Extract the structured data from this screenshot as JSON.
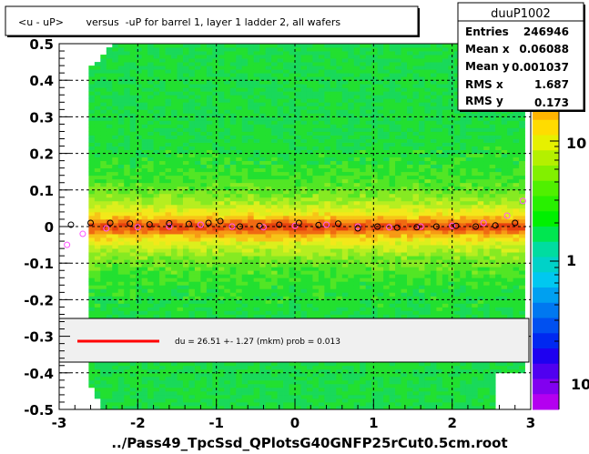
{
  "chart_data": {
    "type": "heatmap",
    "title": "<u - uP>       versus  -uP for barrel 1, layer 1 ladder 2, all wafers",
    "xlabel": "../Pass49_TpcSsd_QPlotsG40GNFP25rCut0.5cm.root",
    "ylabel": "",
    "xlim": [
      -3,
      3
    ],
    "ylim": [
      -0.5,
      0.5
    ],
    "x_ticks": [
      "-3",
      "-2",
      "-1",
      "0",
      "1",
      "2",
      "3"
    ],
    "y_ticks": [
      "-0.5",
      "-0.4",
      "-0.3",
      "-0.2",
      "-0.1",
      "0",
      "0.1",
      "0.2",
      "0.3",
      "0.4",
      "0.5"
    ],
    "grid": true,
    "stats": {
      "name": "duuP1002",
      "rows": [
        {
          "label": "Entries",
          "value": "246946"
        },
        {
          "label": "Mean x",
          "value": "0.06088"
        },
        {
          "label": "Mean y",
          "value": "0.001037"
        },
        {
          "label": "RMS x",
          "value": "1.687"
        },
        {
          "label": "RMS y",
          "value": "0.173"
        }
      ]
    },
    "colorbar": {
      "labels": [
        "10",
        "1",
        "10"
      ],
      "scale": "log"
    },
    "fit_legend": {
      "text": "du =   26.51 +-  1.27 (mkm) prob = 0.013",
      "line_color": "#ff0000"
    },
    "profile_mean": {
      "name": "mean",
      "x": [
        -2.85,
        -2.6,
        -2.35,
        -2.1,
        -1.85,
        -1.6,
        -1.35,
        -1.1,
        -0.95,
        -0.7,
        -0.45,
        -0.2,
        0.05,
        0.3,
        0.55,
        0.8,
        1.05,
        1.3,
        1.55,
        1.8,
        2.05,
        2.3,
        2.55,
        2.8
      ],
      "y": [
        0.005,
        0.01,
        0.01,
        0.008,
        0.006,
        0.009,
        0.007,
        0.01,
        0.015,
        0.0,
        0.002,
        0.005,
        0.01,
        0.004,
        0.008,
        -0.005,
        0.0,
        -0.003,
        -0.002,
        0.0,
        0.002,
        0.0,
        0.003,
        0.01
      ]
    },
    "profile_fit": {
      "name": "fit",
      "x": [
        -2.9,
        -2.7,
        -2.4,
        -2.0,
        -1.6,
        -1.2,
        -0.8,
        -0.4,
        0.0,
        0.4,
        0.8,
        1.2,
        1.6,
        2.0,
        2.4,
        2.7,
        2.9
      ],
      "y": [
        -0.05,
        -0.02,
        -0.005,
        -0.002,
        0.0,
        0.005,
        0.0,
        -0.002,
        0.002,
        0.005,
        0.0,
        -0.002,
        0.0,
        0.002,
        0.01,
        0.03,
        0.07
      ]
    },
    "colors": {
      "frame_bg": "#ffffff",
      "legend_bg": "#f0f0f0",
      "mean_marker": "#000000",
      "fit_marker": "#ff55ff"
    }
  }
}
